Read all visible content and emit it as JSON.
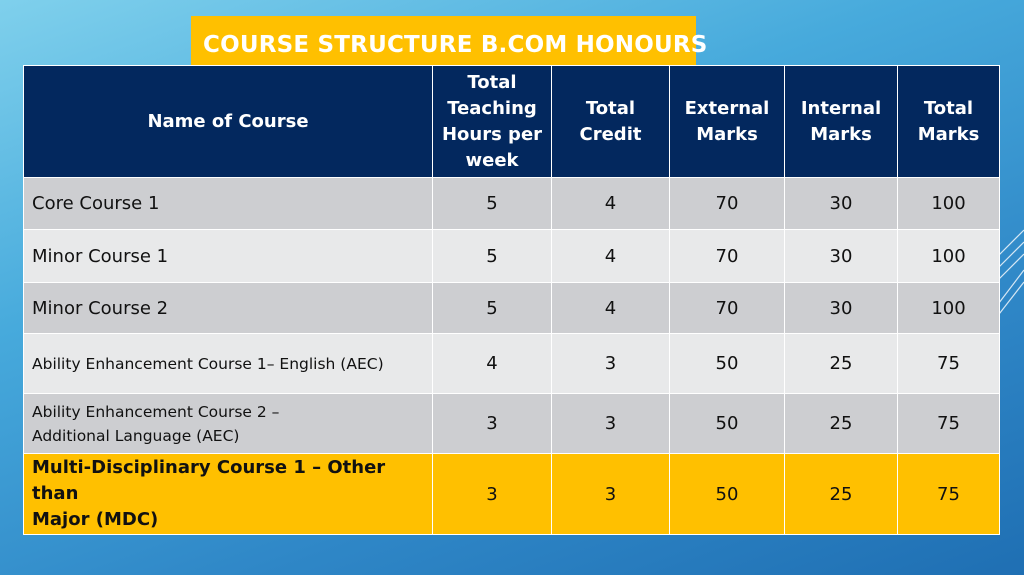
{
  "title": "COURSE STRUCTURE B.COM HONOURS",
  "table": {
    "headers": [
      "Name of Course",
      "Total Teaching Hours per week",
      "Total Credit",
      "External Marks",
      "Internal Marks",
      "Total Marks"
    ],
    "rows": [
      {
        "name": "Core Course 1",
        "hours": "5",
        "credit": "4",
        "external": "70",
        "internal": "30",
        "total": "100"
      },
      {
        "name": "Minor Course 1",
        "hours": "5",
        "credit": "4",
        "external": "70",
        "internal": "30",
        "total": "100"
      },
      {
        "name": "Minor Course 2",
        "hours": "5",
        "credit": "4",
        "external": "70",
        "internal": "30",
        "total": "100"
      },
      {
        "name": "Ability Enhancement Course 1– English (AEC)",
        "hours": "4",
        "credit": "3",
        "external": "50",
        "internal": "25",
        "total": "75"
      },
      {
        "name_line1": "Ability Enhancement Course 2 –",
        "name_line2": "Additional Language (AEC)",
        "hours": "3",
        "credit": "3",
        "external": "50",
        "internal": "25",
        "total": "75"
      },
      {
        "name_line1": "Multi-Disciplinary Course 1 – Other than",
        "name_line2": "Major (MDC)",
        "hours": "3",
        "credit": "3",
        "external": "50",
        "internal": "25",
        "total": "75"
      }
    ]
  },
  "colors": {
    "header_bg": "#03285e",
    "title_bg": "#ffc000",
    "highlight_row": "#ffc000",
    "row_dark": "#cdced1",
    "row_light": "#e8e9ea"
  }
}
